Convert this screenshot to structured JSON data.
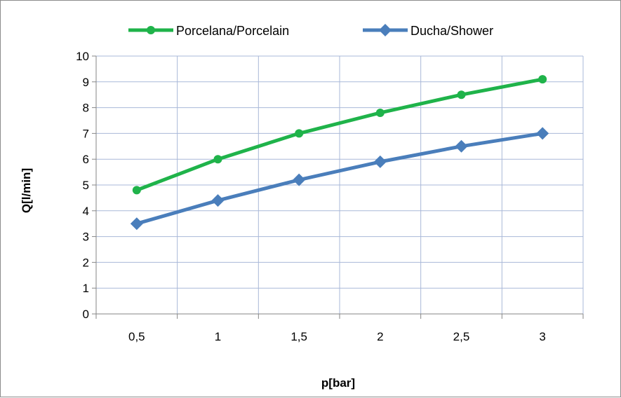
{
  "chart_data": {
    "type": "line",
    "categories": [
      "0,5",
      "1",
      "1,5",
      "2",
      "2,5",
      "3"
    ],
    "series": [
      {
        "name": "Porcelana/Porcelain",
        "values": [
          4.8,
          6.0,
          7.0,
          7.8,
          8.5,
          9.1
        ],
        "color": "#1fb34a",
        "marker": "circle"
      },
      {
        "name": "Ducha/Shower",
        "values": [
          3.5,
          4.4,
          5.2,
          5.9,
          6.5,
          7.0
        ],
        "color": "#4a7ebb",
        "marker": "diamond"
      }
    ],
    "xlabel": "p[bar]",
    "ylabel": "Q[l/min]",
    "ylim": [
      0,
      10
    ],
    "yticks": [
      "0",
      "1",
      "2",
      "3",
      "4",
      "5",
      "6",
      "7",
      "8",
      "9",
      "10"
    ],
    "grid": true,
    "grid_color": "#a9b8d8",
    "legend_position": "top"
  }
}
